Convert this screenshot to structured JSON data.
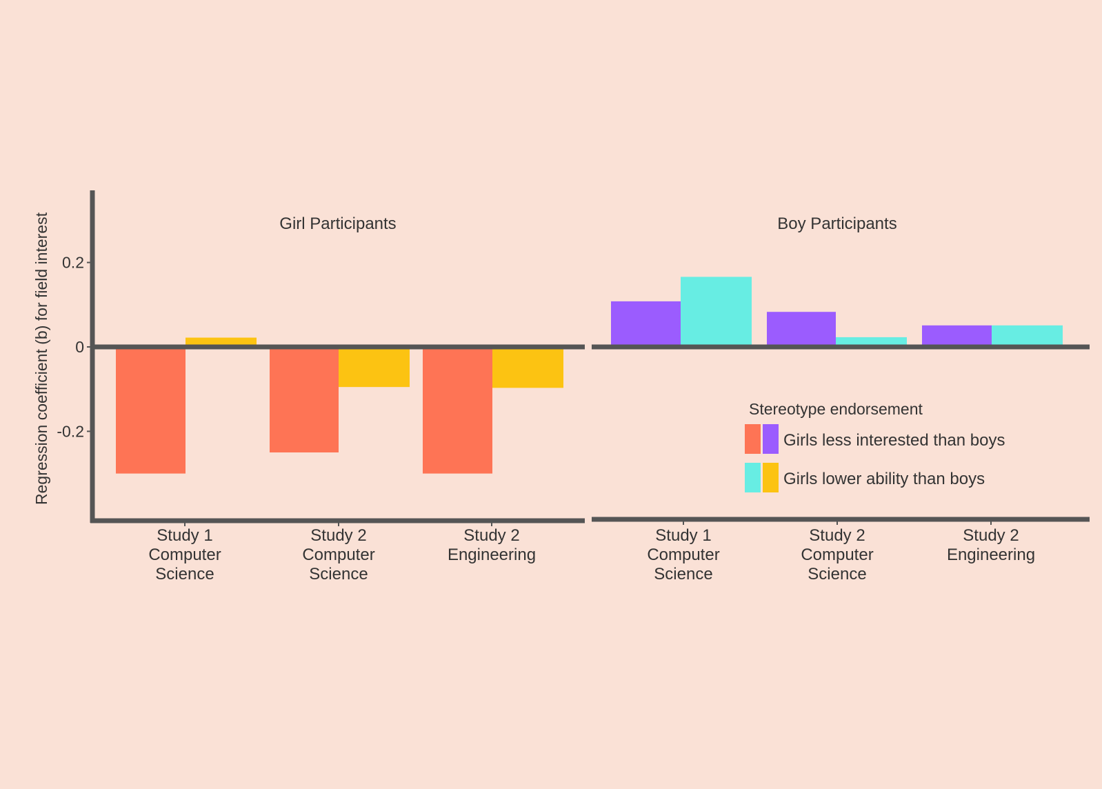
{
  "chart_data": {
    "type": "bar",
    "ylabel": "Regression coefficient (b) for field interest",
    "yticks": [
      0.2,
      0,
      -0.2
    ],
    "ytick_labels": [
      "0.2",
      "0",
      "-0.2"
    ],
    "ylim": [
      -0.39,
      0.375
    ],
    "grid": false,
    "categories": [
      [
        "Study 1",
        "Computer",
        "Science"
      ],
      [
        "Study 2",
        "Computer",
        "Science"
      ],
      [
        "Study 2",
        "Engineering"
      ]
    ],
    "panels": [
      {
        "title": "Girl Participants",
        "series": [
          {
            "values": [
              -0.3,
              -0.25,
              -0.3
            ],
            "color": "#fe7455"
          },
          {
            "values": [
              0.022,
              -0.095,
              -0.097
            ],
            "color": "#fcc312"
          }
        ]
      },
      {
        "title": "Boy Participants",
        "series": [
          {
            "values": [
              0.108,
              0.083,
              0.051
            ],
            "color": "#9b5cfe"
          },
          {
            "values": [
              0.166,
              0.023,
              0.051
            ],
            "color": "#67ede3"
          }
        ]
      }
    ],
    "legend": {
      "title": "Stereotype endorsement",
      "placement": "bottom-right of right panel",
      "entries": [
        {
          "label": "Girls less interested than boys",
          "colors": [
            "#fe7455",
            "#9b5cfe"
          ]
        },
        {
          "label": "Girls lower ability than boys",
          "colors": [
            "#67ede3",
            "#fcc312"
          ]
        }
      ]
    }
  }
}
